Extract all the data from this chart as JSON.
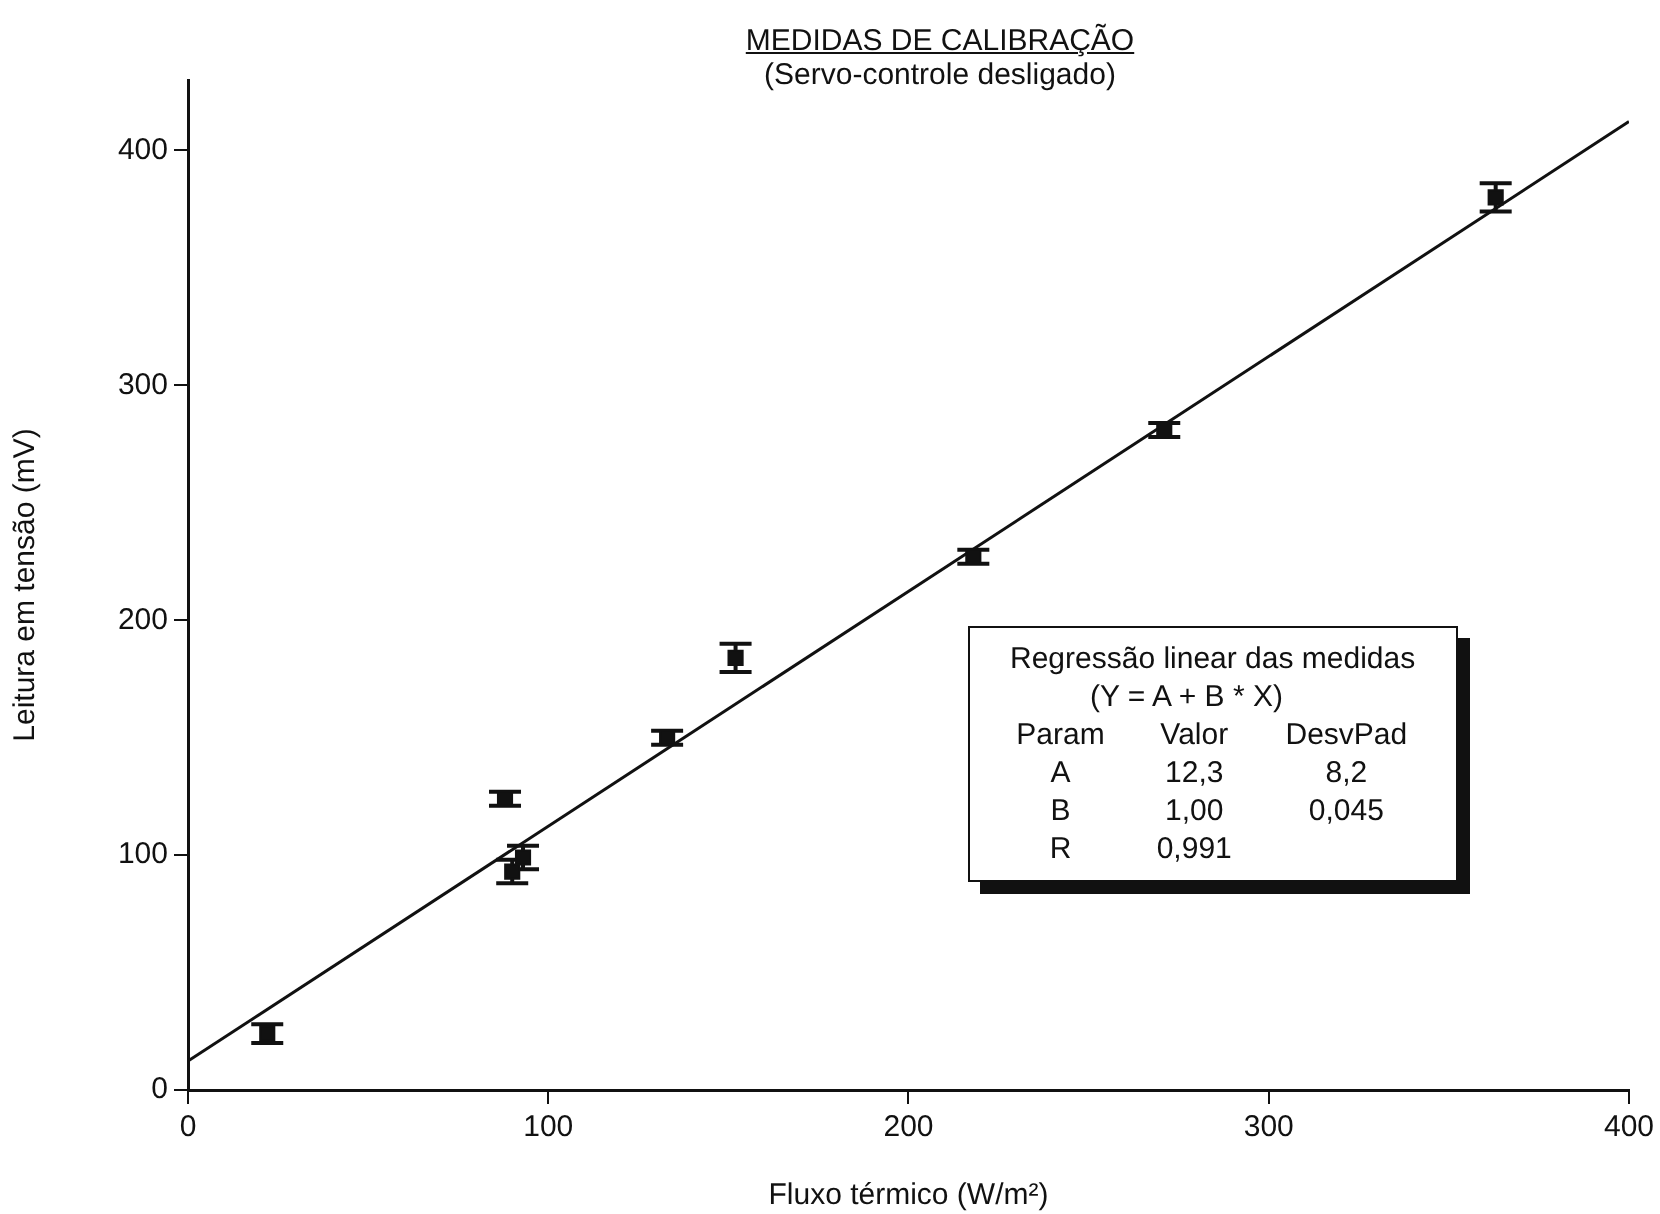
{
  "chart_data": {
    "type": "scatter",
    "title": "MEDIDAS DE CALIBRAÇÃO",
    "subtitle": "(Servo-controle desligado)",
    "xlabel": "Fluxo térmico (W/m²)",
    "ylabel": "Leitura em tensão (mV)",
    "xlim": [
      0,
      400
    ],
    "ylim": [
      0,
      430
    ],
    "xticks": [
      0,
      100,
      200,
      300,
      400
    ],
    "yticks": [
      0,
      100,
      200,
      300,
      400
    ],
    "grid": false,
    "legend": false,
    "marker": "square",
    "series": [
      {
        "color": "#111111",
        "x": [
          22,
          88,
          90,
          93,
          133,
          152,
          218,
          271,
          363
        ],
        "values": [
          24,
          124,
          93,
          99,
          150,
          184,
          227,
          281,
          380
        ],
        "errors": [
          4,
          3,
          5,
          5,
          3,
          6,
          3,
          3,
          6
        ]
      },
      {
        "type": "line",
        "color": "#111111",
        "marker": "none",
        "x": [
          0,
          400
        ],
        "values": [
          12.3,
          412.3
        ]
      }
    ],
    "annotations": [
      "Regressão linear das medidas",
      "(Y = A + B * X)",
      "Param  Valor  DesvPad",
      "A  12,3  8,2",
      "B  1,00  0,045",
      "R  0,991"
    ]
  }
}
